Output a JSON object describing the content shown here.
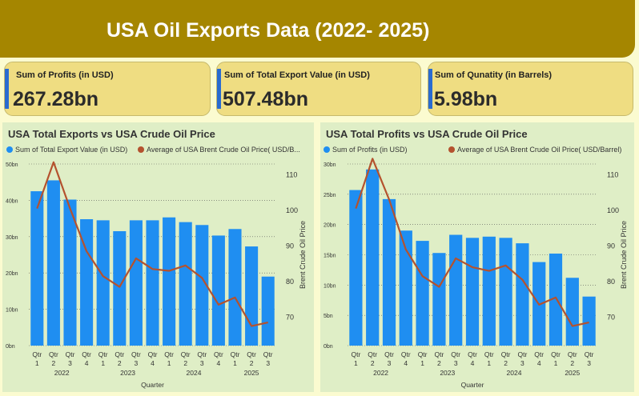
{
  "header": {
    "title": "USA Oil Exports Data (2022- 2025)"
  },
  "kpis": [
    {
      "label": "Sum of Profits (in USD)",
      "value": "267.28bn"
    },
    {
      "label": "Sum of Total Export Value (in USD)",
      "value": "507.48bn"
    },
    {
      "label": "Sum of Qunatity (in Barrels)",
      "value": "5.98bn"
    }
  ],
  "colors": {
    "bar": "#1f8ef1",
    "line": "#b4522e",
    "header": "#a58600",
    "card": "#efdd82",
    "panel": "#dfeec6"
  },
  "chart_data": [
    {
      "type": "bar",
      "title": "USA Total Exports vs USA Crude Oil Price",
      "legend": [
        "Sum of Total Export Value (in USD)",
        "Average of USA Brent Crude Oil Price( USD/B..."
      ],
      "legend_position": "top",
      "categories": [
        "Qtr 1",
        "Qtr 2",
        "Qtr 3",
        "Qtr 4",
        "Qtr 1",
        "Qtr 2",
        "Qtr 3",
        "Qtr 4",
        "Qtr 1",
        "Qtr 2",
        "Qtr 3",
        "Qtr 4",
        "Qtr 1",
        "Qtr 2",
        "Qtr 3"
      ],
      "category_labels": [
        [
          "Qtr",
          "1"
        ],
        [
          "Qtr",
          "2"
        ],
        [
          "Qtr",
          "3"
        ],
        [
          "Qtr",
          "4"
        ],
        [
          "Qtr",
          "1"
        ],
        [
          "Qtr",
          "2"
        ],
        [
          "Qtr",
          "3"
        ],
        [
          "Qtr",
          "4"
        ],
        [
          "Qtr",
          "1"
        ],
        [
          "Qtr",
          "2"
        ],
        [
          "Qtr",
          "3"
        ],
        [
          "Qtr",
          "4"
        ],
        [
          "Qtr",
          "1"
        ],
        [
          "Qtr",
          "2"
        ],
        [
          "Qtr",
          "3"
        ]
      ],
      "year_groups": [
        {
          "label": "2022",
          "start": 0,
          "end": 3
        },
        {
          "label": "2023",
          "start": 4,
          "end": 7
        },
        {
          "label": "2024",
          "start": 8,
          "end": 11
        },
        {
          "label": "2025",
          "start": 12,
          "end": 14
        }
      ],
      "xlabel": "Quarter",
      "ylabel": "",
      "y2label": "Brent Crude Oil Price",
      "ylim": [
        0,
        50
      ],
      "yticks": [
        0,
        10,
        20,
        30,
        40,
        50
      ],
      "ytick_labels": [
        "0bn",
        "10bn",
        "20bn",
        "30bn",
        "40bn",
        "50bn"
      ],
      "y2lim": [
        62,
        113
      ],
      "y2ticks": [
        70,
        80,
        90,
        100,
        110
      ],
      "series": [
        {
          "name": "Sum of Total Export Value (in USD)",
          "type": "bar",
          "axis": "left",
          "values": [
            42.5,
            45.5,
            40.2,
            34.8,
            34.5,
            31.5,
            34.5,
            34.5,
            35.3,
            34.0,
            33.2,
            30.3,
            32.1,
            27.3,
            19.0
          ]
        },
        {
          "name": "Average of USA Brent Crude Oil Price( USD/B...",
          "type": "line",
          "axis": "right",
          "values": [
            100.5,
            113.5,
            100.5,
            88.5,
            81.5,
            78.5,
            86.5,
            83.5,
            83.0,
            84.5,
            81.0,
            73.5,
            75.5,
            67.5,
            68.5
          ]
        }
      ]
    },
    {
      "type": "bar",
      "title": "USA Total Profits vs USA Crude Oil Price",
      "legend": [
        "Sum of Profits (in USD)",
        "Average of USA Brent Crude Oil Price( USD/Barrel)"
      ],
      "legend_position": "top",
      "categories": [
        "Qtr 1",
        "Qtr 2",
        "Qtr 3",
        "Qtr 4",
        "Qtr 1",
        "Qtr 2",
        "Qtr 3",
        "Qtr 4",
        "Qtr 1",
        "Qtr 2",
        "Qtr 3",
        "Qtr 4",
        "Qtr 1",
        "Qtr 2",
        "Qtr 3"
      ],
      "category_labels": [
        [
          "Qtr",
          "1"
        ],
        [
          "Qtr",
          "2"
        ],
        [
          "Qtr",
          "3"
        ],
        [
          "Qtr",
          "4"
        ],
        [
          "Qtr",
          "1"
        ],
        [
          "Qtr",
          "2"
        ],
        [
          "Qtr",
          "3"
        ],
        [
          "Qtr",
          "4"
        ],
        [
          "Qtr",
          "1"
        ],
        [
          "Qtr",
          "2"
        ],
        [
          "Qtr",
          "3"
        ],
        [
          "Qtr",
          "4"
        ],
        [
          "Qtr",
          "1"
        ],
        [
          "Qtr",
          "2"
        ],
        [
          "Qtr",
          "3"
        ]
      ],
      "year_groups": [
        {
          "label": "2022",
          "start": 0,
          "end": 3
        },
        {
          "label": "2023",
          "start": 4,
          "end": 7
        },
        {
          "label": "2024",
          "start": 8,
          "end": 11
        },
        {
          "label": "2025",
          "start": 12,
          "end": 14
        }
      ],
      "xlabel": "Quarter",
      "ylabel": "",
      "y2label": "Brent Crude Oil Price",
      "ylim": [
        0,
        30
      ],
      "yticks": [
        0,
        5,
        10,
        15,
        20,
        25,
        30
      ],
      "ytick_labels": [
        "0bn",
        "5bn",
        "10bn",
        "15bn",
        "20bn",
        "25bn",
        "30bn"
      ],
      "y2lim": [
        62,
        113
      ],
      "y2ticks": [
        70,
        80,
        90,
        100,
        110
      ],
      "series": [
        {
          "name": "Sum of Profits (in USD)",
          "type": "bar",
          "axis": "left",
          "values": [
            25.7,
            29.1,
            24.2,
            19.0,
            17.3,
            15.3,
            18.3,
            17.8,
            18.0,
            17.8,
            16.9,
            13.8,
            15.2,
            11.2,
            8.1
          ]
        },
        {
          "name": "Average of USA Brent Crude Oil Price( USD/Barrel)",
          "type": "line",
          "axis": "right",
          "values": [
            100.5,
            114.5,
            103.0,
            89.0,
            81.5,
            78.5,
            86.5,
            84.0,
            83.0,
            84.5,
            80.5,
            73.5,
            75.5,
            67.5,
            68.5
          ]
        }
      ]
    }
  ]
}
